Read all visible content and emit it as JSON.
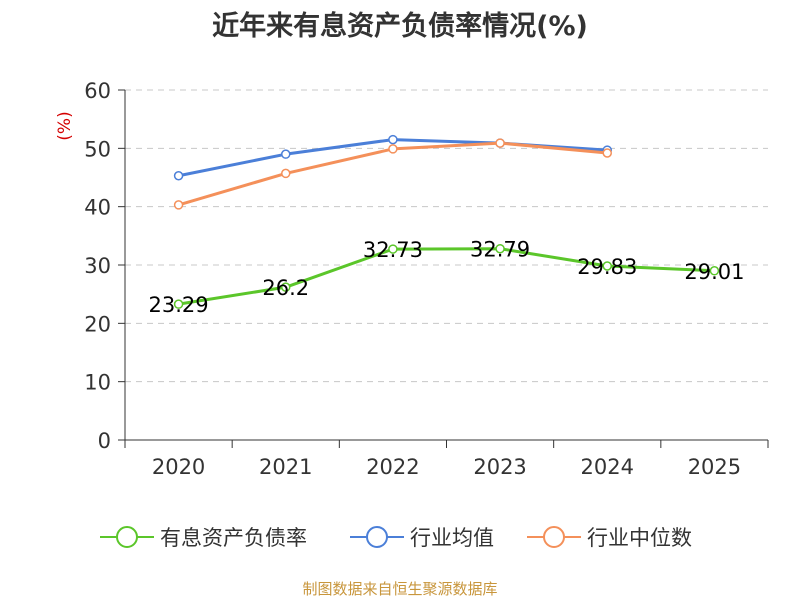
{
  "title": "近年来有息资产负债率情况(%)",
  "footer": "制图数据来自恒生聚源数据库",
  "chart_data": {
    "type": "line",
    "title": "近年来有息资产负债率情况(%)",
    "ylabel": "(%)",
    "xlabel": "",
    "categories": [
      "2020",
      "2021",
      "2022",
      "2023",
      "2024",
      "2025"
    ],
    "ylim": [
      0,
      60
    ],
    "yticks": [
      0,
      10,
      20,
      30,
      40,
      50,
      60
    ],
    "grid": "horizontal dashed",
    "legend_position": "bottom",
    "series": [
      {
        "name": "有息资产负债率",
        "color": "#5bc62a",
        "values": [
          23.29,
          26.2,
          32.73,
          32.79,
          29.83,
          29.01
        ],
        "data_labels": [
          "23.29",
          "26.2",
          "32.73",
          "32.79",
          "29.83",
          "29.01"
        ]
      },
      {
        "name": "行业均值",
        "color": "#4b7fd8",
        "values": [
          45.3,
          49.0,
          51.5,
          50.9,
          49.7,
          null
        ]
      },
      {
        "name": "行业中位数",
        "color": "#f4905a",
        "values": [
          40.3,
          45.7,
          49.9,
          50.9,
          49.2,
          null
        ]
      }
    ]
  }
}
